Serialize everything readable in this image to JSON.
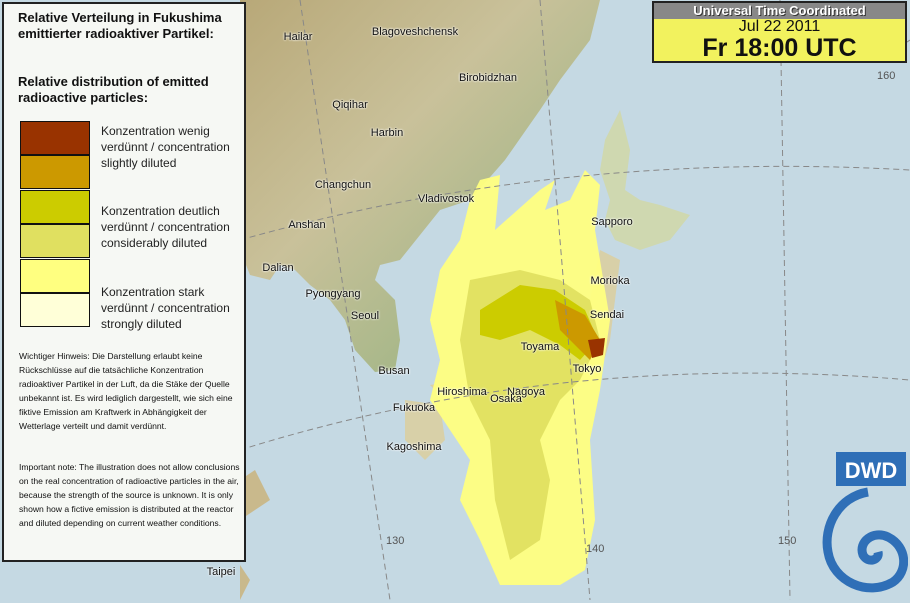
{
  "legend": {
    "title_de": "Relative Verteilung in Fukushima emittierter radioaktiver Partikel:",
    "title_en": "Relative distribution of emitted radioactive particles:",
    "levels": [
      {
        "label": "Konzentration wenig verdünnt / concentration slightly diluted",
        "colors": [
          "#993300",
          "#cc9900"
        ]
      },
      {
        "label": "Konzentration deutlich verdünnt / concentration considerably diluted",
        "colors": [
          "#cccc00",
          "#e0e060"
        ]
      },
      {
        "label": "Konzentration stark verdünnt / concentration strongly diluted",
        "colors": [
          "#ffff80",
          "#ffffd8"
        ]
      }
    ],
    "note_de": "Wichtiger Hinweis: Die Darstellung erlaubt keine Rückschlüsse auf die tatsächliche Konzentration radioaktiver Partikel in der Luft, da die Stäke der Quelle unbekannt ist. Es wird lediglich dargestellt, wie sich eine fiktive Emission am Kraftwerk in Abhängigkeit der Wetterlage verteilt und damit verdünnt.",
    "note_en": "Important note: The illustration does not allow conclusions on the real concentration of radioactive particles in the air, because the strength of the source is unknown. It is only shown how a fictive emission is distributed at the reactor and diluted depending on current weather conditions."
  },
  "time": {
    "header": "Universal Time Coordinated",
    "date": "Jul 22 2011",
    "time": "Fr 18:00 UTC"
  },
  "cities": [
    "Hailar",
    "Blagoveshchensk",
    "Qiqihar",
    "Birobidzhan",
    "Harbin",
    "Changchun",
    "Vladivostok",
    "Anshan",
    "Dalian",
    "Pyongyang",
    "Seoul",
    "Sapporo",
    "Morioka",
    "Sendai",
    "Toyama",
    "Tokyo",
    "Busan",
    "Hiroshima",
    "Nagoya",
    "Osaka",
    "Fukuoka",
    "Kagoshima",
    "Taipei"
  ],
  "longitudes": [
    "130",
    "140",
    "150",
    "160"
  ],
  "logo": "DWD"
}
